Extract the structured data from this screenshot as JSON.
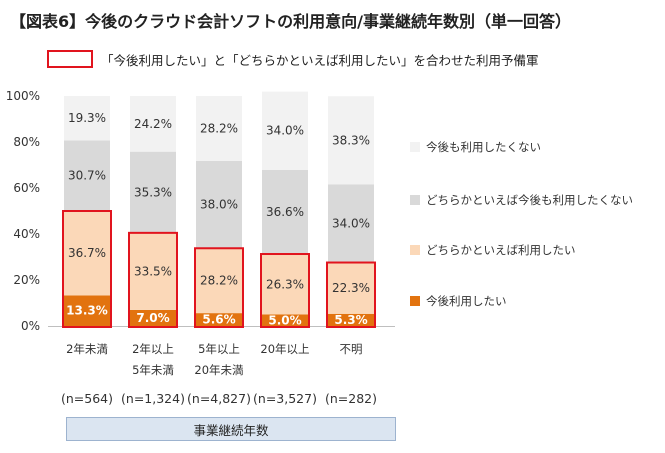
{
  "title": "【図表6】今後のクラウド会計ソフトの利用意向/事業継続年数別（単一回答）",
  "note": "「今後利用したい」と「どちらかといえば利用したい」を合わせた利用予備軍",
  "colors": {
    "now": "#e2730f",
    "maybe": "#fbd8b8",
    "maybe_not": "#d9d9d9",
    "not": "#f2f2f2",
    "highlight": "#e1141e"
  },
  "chart_data": {
    "type": "bar",
    "stacked": true,
    "orientation": "vertical",
    "ylim": [
      0,
      100
    ],
    "yticks": [
      "0%",
      "20%",
      "40%",
      "60%",
      "80%",
      "100%"
    ],
    "categories": [
      [
        "2年未満"
      ],
      [
        "2年以上",
        "5年未満"
      ],
      [
        "5年以上",
        "20年未満"
      ],
      [
        "20年以上"
      ],
      [
        "不明"
      ]
    ],
    "n_labels": [
      "(n=564)",
      "(n=1,324)",
      "(n=4,827)",
      "(n=3,527)",
      "(n=282)"
    ],
    "xlabel": "事業継続年数",
    "series": [
      {
        "name": "今後利用したい",
        "values": [
          13.3,
          7.0,
          5.6,
          5.0,
          5.3
        ],
        "labels": [
          "13.3%",
          "7.0%",
          "5.6%",
          "5.0%",
          "5.3%"
        ]
      },
      {
        "name": "どちらかといえば利用したい",
        "values": [
          36.7,
          33.5,
          28.2,
          26.3,
          22.3
        ],
        "labels": [
          "36.7%",
          "33.5%",
          "28.2%",
          "26.3%",
          "22.3%"
        ]
      },
      {
        "name": "どちらかといえば今後も利用したくない",
        "values": [
          30.7,
          35.3,
          38.0,
          36.6,
          34.0
        ],
        "labels": [
          "30.7%",
          "35.3%",
          "38.0%",
          "36.6%",
          "34.0%"
        ]
      },
      {
        "name": "今後も利用したくない",
        "values": [
          19.3,
          24.2,
          28.2,
          34.0,
          38.3
        ],
        "labels": [
          "19.3%",
          "24.2%",
          "28.2%",
          "34.0%",
          "38.3%"
        ]
      }
    ],
    "legend_order": [
      3,
      2,
      1,
      0
    ],
    "legend_position": "right"
  }
}
